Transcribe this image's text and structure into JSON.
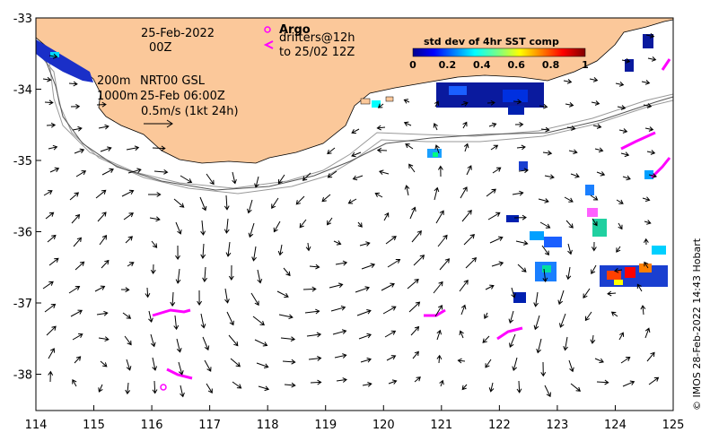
{
  "map": {
    "x_ticks": [
      "114",
      "115",
      "116",
      "117",
      "118",
      "119",
      "120",
      "121",
      "122",
      "123",
      "124",
      "125"
    ],
    "y_ticks": [
      "-33",
      "-34",
      "-35",
      "-36",
      "-37",
      "-38"
    ],
    "date_line1": "25-Feb-2022",
    "date_line2": "00Z",
    "argo_label": "Argo",
    "drifters_line1": "drifters@12h",
    "drifters_line2": "to 25/02 12Z",
    "iso200": "200m",
    "iso1000": "1000m",
    "product": "NRT00 GSL",
    "product_time": "25-Feb 06:00Z",
    "scale_text": "0.5m/s (1kt 24h)",
    "colorbar_title": "std dev of 4hr SST comp",
    "colorbar_ticks": [
      "0",
      "0.2",
      "0.4",
      "0.6",
      "0.8",
      "1"
    ],
    "credit": "© IMOS 28-Feb-2022 14:43 Hobart",
    "colors": {
      "land": "#fbc89a",
      "drifter": "#ff00ff",
      "arrow": "#000000",
      "isobath": "#999999"
    }
  }
}
